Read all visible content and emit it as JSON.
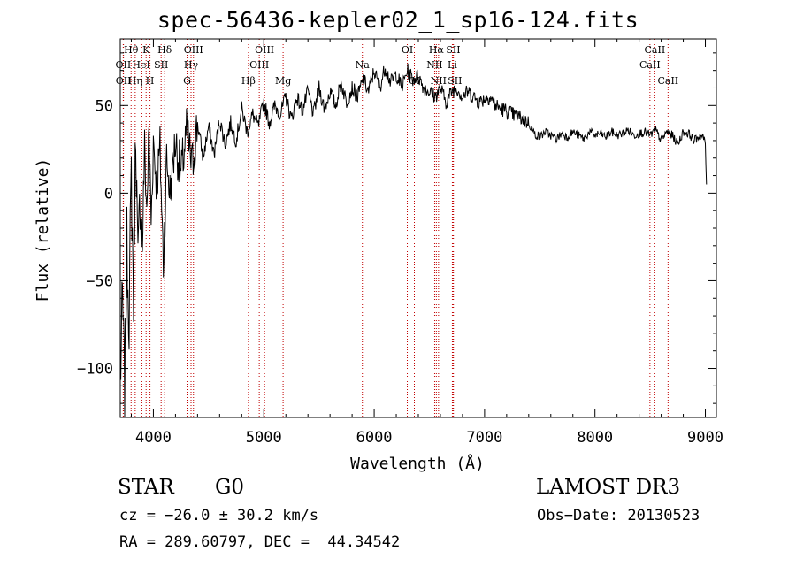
{
  "page": {
    "title": "spec-56436-kepler02_1_sp16-124.fits"
  },
  "info": {
    "object_type": "STAR",
    "object_class": "G0",
    "survey": "LAMOST DR3",
    "cz": "cz = −26.0 ± 30.2 km/s",
    "obs_date": "Obs−Date: 20130523",
    "radec": "RA = 289.60797, DEC =  44.34542"
  },
  "chart_data": {
    "type": "line",
    "title": "spec-56436-kepler02_1_sp16-124.fits",
    "xlabel": "Wavelength (Å)",
    "ylabel": "Flux (relative)",
    "xlim": [
      3700,
      9100
    ],
    "ylim": [
      -128,
      88
    ],
    "xticks": [
      4000,
      5000,
      6000,
      7000,
      8000,
      9000
    ],
    "yticks": [
      -100,
      -50,
      0,
      50
    ],
    "ytick_labels": [
      "−100",
      "−50",
      "0",
      "50"
    ],
    "series": [
      {
        "name": "flux",
        "x": [
          3700,
          3720,
          3740,
          3760,
          3780,
          3800,
          3820,
          3840,
          3860,
          3880,
          3900,
          3920,
          3940,
          3960,
          3980,
          4000,
          4030,
          4060,
          4090,
          4120,
          4150,
          4200,
          4250,
          4300,
          4350,
          4400,
          4450,
          4500,
          4550,
          4600,
          4650,
          4700,
          4750,
          4800,
          4850,
          4900,
          4950,
          5000,
          5050,
          5100,
          5150,
          5200,
          5250,
          5300,
          5350,
          5400,
          5450,
          5500,
          5550,
          5600,
          5650,
          5700,
          5750,
          5800,
          5850,
          5900,
          5950,
          6000,
          6050,
          6100,
          6150,
          6200,
          6250,
          6300,
          6350,
          6400,
          6450,
          6500,
          6550,
          6600,
          6650,
          6700,
          6750,
          6800,
          6850,
          6900,
          6950,
          7000,
          7050,
          7100,
          7150,
          7200,
          7250,
          7300,
          7350,
          7400,
          7450,
          7500,
          7550,
          7600,
          7650,
          7700,
          7750,
          7800,
          7850,
          7900,
          7950,
          8000,
          8050,
          8100,
          8150,
          8200,
          8250,
          8300,
          8350,
          8400,
          8450,
          8500,
          8550,
          8600,
          8650,
          8700,
          8750,
          8800,
          8850,
          8900,
          8950,
          8980,
          9000,
          9010
        ],
        "y": [
          -110,
          -60,
          -115,
          -30,
          -70,
          10,
          -60,
          40,
          -45,
          0,
          -30,
          25,
          -10,
          35,
          -15,
          30,
          5,
          25,
          -40,
          20,
          0,
          30,
          10,
          35,
          15,
          40,
          20,
          38,
          22,
          42,
          28,
          40,
          30,
          48,
          35,
          45,
          38,
          52,
          40,
          50,
          45,
          55,
          42,
          55,
          47,
          58,
          45,
          60,
          48,
          58,
          50,
          63,
          52,
          60,
          55,
          65,
          58,
          70,
          60,
          72,
          63,
          68,
          60,
          70,
          65,
          67,
          60,
          58,
          55,
          60,
          52,
          58,
          60,
          55,
          58,
          55,
          52,
          54,
          55,
          50,
          48,
          47,
          45,
          44,
          42,
          40,
          34,
          32,
          35,
          33,
          31,
          34,
          32,
          35,
          33,
          31,
          35,
          33,
          34,
          32,
          35,
          33,
          34,
          36,
          33,
          34,
          35,
          33,
          36,
          30,
          35,
          33,
          28,
          35,
          34,
          30,
          33,
          32,
          28,
          5
        ]
      }
    ],
    "lines": [
      {
        "label": "Hθ",
        "wl": 3798,
        "row": 0
      },
      {
        "label": "OII",
        "wl": 3727,
        "row": 1
      },
      {
        "label": "OII",
        "wl": 3729,
        "row": 2
      },
      {
        "label": "Hη",
        "wl": 3835,
        "row": 2
      },
      {
        "label": "K",
        "wl": 3934,
        "row": 0
      },
      {
        "label": "HeI",
        "wl": 3889,
        "row": 1
      },
      {
        "label": "SII",
        "wl": 4070,
        "row": 1
      },
      {
        "label": "H",
        "wl": 3969,
        "row": 2
      },
      {
        "label": "Hδ",
        "wl": 4102,
        "row": 0
      },
      {
        "label": "OIII",
        "wl": 4363,
        "row": 0
      },
      {
        "label": "Hγ",
        "wl": 4341,
        "row": 1
      },
      {
        "label": "G",
        "wl": 4305,
        "row": 2
      },
      {
        "label": "Hβ",
        "wl": 4861,
        "row": 2
      },
      {
        "label": "OIII",
        "wl": 4959,
        "row": 1
      },
      {
        "label": "OIII",
        "wl": 5007,
        "row": 0
      },
      {
        "label": "Mg",
        "wl": 5175,
        "row": 2
      },
      {
        "label": "Na",
        "wl": 5893,
        "row": 1
      },
      {
        "label": "OI",
        "wl": 6300,
        "row": 0
      },
      {
        "label": "OI",
        "wl": 6364,
        "row": 2
      },
      {
        "label": "Hα",
        "wl": 6563,
        "row": 0
      },
      {
        "label": "NII",
        "wl": 6548,
        "row": 1
      },
      {
        "label": "NII",
        "wl": 6583,
        "row": 2
      },
      {
        "label": "SII",
        "wl": 6716,
        "row": 0
      },
      {
        "label": "Li",
        "wl": 6708,
        "row": 1
      },
      {
        "label": "SII",
        "wl": 6731,
        "row": 2
      },
      {
        "label": "CaII",
        "wl": 8542,
        "row": 0
      },
      {
        "label": "CaII",
        "wl": 8498,
        "row": 1
      },
      {
        "label": "CaII",
        "wl": 8662,
        "row": 2
      }
    ]
  }
}
